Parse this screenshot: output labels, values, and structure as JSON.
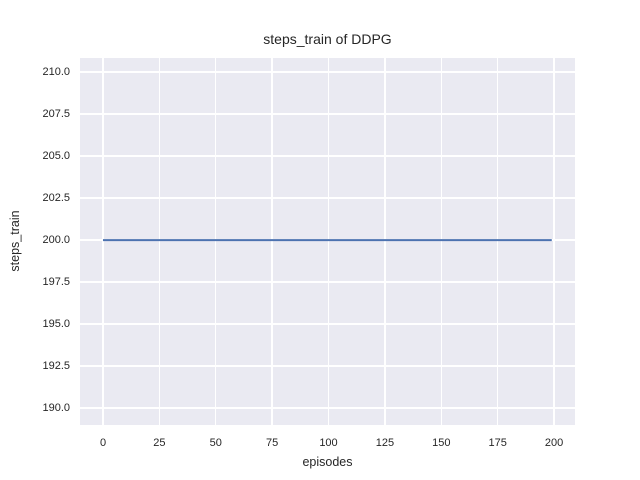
{
  "chart_data": {
    "type": "line",
    "title": "steps_train of DDPG",
    "xlabel": "episodes",
    "ylabel": "steps_train",
    "x_tick_labels": [
      "0",
      "25",
      "50",
      "75",
      "100",
      "125",
      "150",
      "175",
      "200"
    ],
    "y_tick_labels": [
      "190.0",
      "192.5",
      "195.0",
      "197.5",
      "200.0",
      "202.5",
      "205.0",
      "207.5",
      "210.0"
    ],
    "xlim": [
      -10.2,
      209.3
    ],
    "ylim": [
      188.99,
      210.84
    ],
    "grid": true,
    "legend": "none",
    "plot_background": "#eaeaf2",
    "grid_color": "#ffffff",
    "text_color": "#262626",
    "series": [
      {
        "name": "steps_train",
        "color": "#4c72b0",
        "line_width": 2,
        "x": [
          0,
          199
        ],
        "y": [
          200,
          200
        ],
        "description": "constant value 200 across all episodes 0-199"
      }
    ]
  }
}
